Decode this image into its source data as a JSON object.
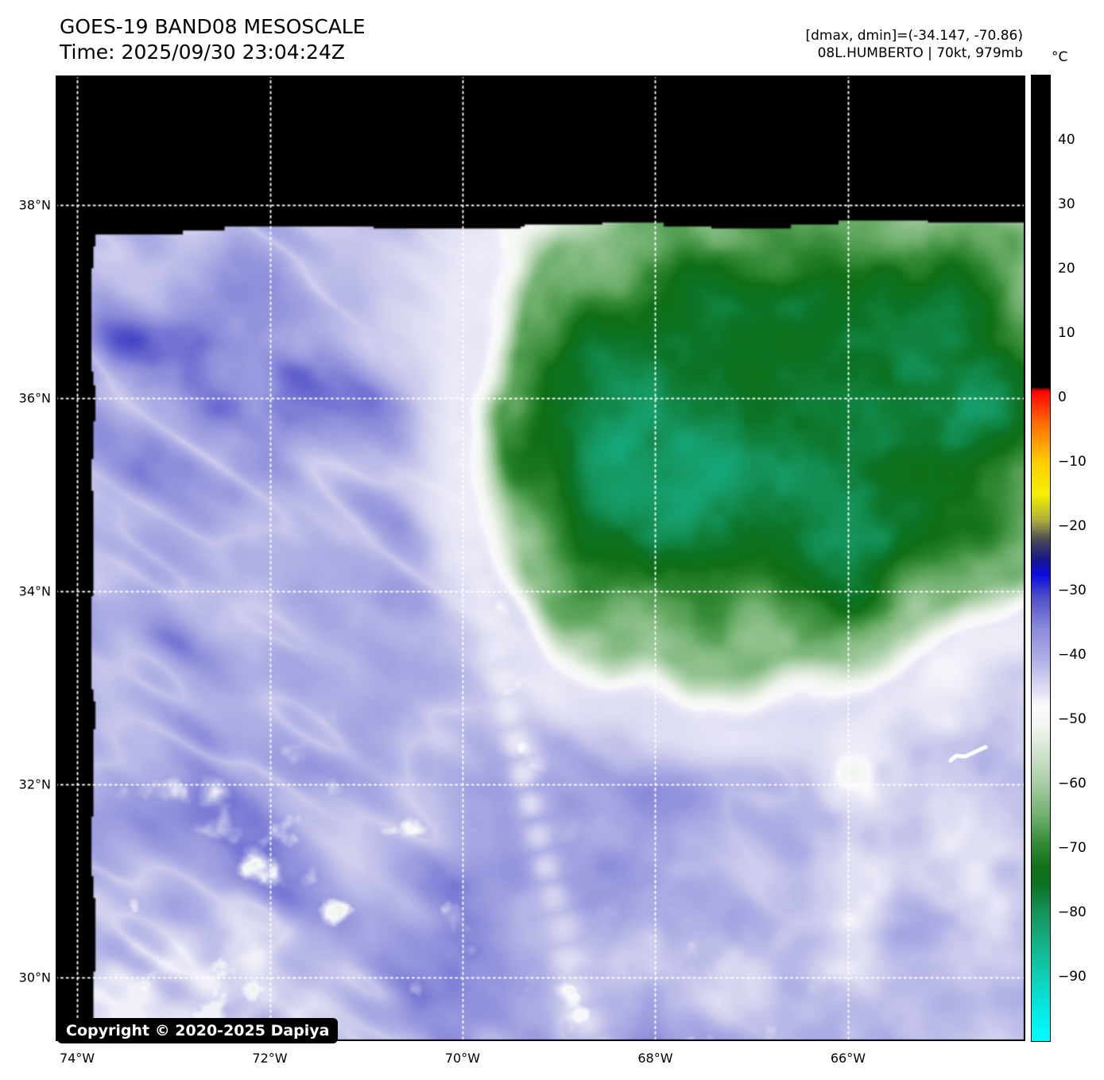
{
  "header": {
    "title": "GOES-19 BAND08 MESOSCALE",
    "time_line": "Time: 2025/09/30 23:04:24Z",
    "extrema_line": "[dmax, dmin]=(-34.147, -70.86)",
    "storm_line": "08L.HUMBERTO | 70kt, 979mb"
  },
  "map": {
    "copyright": "Copyright © 2020-2025 Dapiya",
    "lat_ticks": [
      {
        "lat": 38,
        "label": "38°N"
      },
      {
        "lat": 36,
        "label": "36°N"
      },
      {
        "lat": 34,
        "label": "34°N"
      },
      {
        "lat": 32,
        "label": "32°N"
      },
      {
        "lat": 30,
        "label": "30°N"
      }
    ],
    "lon_ticks": [
      {
        "lon": -74,
        "label": "74°W"
      },
      {
        "lon": -72,
        "label": "72°W"
      },
      {
        "lon": -70,
        "label": "70°W"
      },
      {
        "lon": -68,
        "label": "68°W"
      },
      {
        "lon": -66,
        "label": "66°W"
      }
    ]
  },
  "chart_data": {
    "type": "heatmap",
    "title": "GOES-19 BAND08 MESOSCALE",
    "subtitle": "Time: 2025/09/30 23:04:24Z",
    "annotations": {
      "dmax": -34.147,
      "dmin": -70.86,
      "storm_id": "08L",
      "storm_name": "HUMBERTO",
      "intensity_kt": 70,
      "pressure_mb": 979
    },
    "lon_range": [
      -74.223,
      -64.16
    ],
    "lat_range": [
      39.342,
      29.338
    ],
    "grid": "dotted-white",
    "colorbar": {
      "unit": "°C",
      "min": -100,
      "max": 50,
      "tick_labels": [
        {
          "v": 40,
          "label": "40"
        },
        {
          "v": 30,
          "label": "30"
        },
        {
          "v": 20,
          "label": "20"
        },
        {
          "v": 10,
          "label": "10"
        },
        {
          "v": 0,
          "label": "0"
        },
        {
          "v": -10,
          "label": "−10"
        },
        {
          "v": -20,
          "label": "−20"
        },
        {
          "v": -30,
          "label": "−30"
        },
        {
          "v": -40,
          "label": "−40"
        },
        {
          "v": -50,
          "label": "−50"
        },
        {
          "v": -60,
          "label": "−60"
        },
        {
          "v": -70,
          "label": "−70"
        },
        {
          "v": -80,
          "label": "−80"
        },
        {
          "v": -90,
          "label": "−90"
        }
      ],
      "palette_stops": [
        [
          50,
          "#000000"
        ],
        [
          1.6,
          "#000000"
        ],
        [
          1.1,
          "#ff0000"
        ],
        [
          -4,
          "#ff6e00"
        ],
        [
          -10,
          "#ffcd00"
        ],
        [
          -15,
          "#f6f000"
        ],
        [
          -19,
          "#afaf3c"
        ],
        [
          -22,
          "#4b4b55"
        ],
        [
          -25,
          "#191987"
        ],
        [
          -27.5,
          "#0a0ae1"
        ],
        [
          -31,
          "#5050c8"
        ],
        [
          -36,
          "#8c8cdb"
        ],
        [
          -41,
          "#b2b2e6"
        ],
        [
          -45,
          "#dbdbf2"
        ],
        [
          -48,
          "#fafafd"
        ],
        [
          -51,
          "#f2f6f0"
        ],
        [
          -55,
          "#d2e4cf"
        ],
        [
          -60,
          "#a7cda4"
        ],
        [
          -65,
          "#6eaf6c"
        ],
        [
          -69,
          "#378c38"
        ],
        [
          -73,
          "#0f6f16"
        ],
        [
          -76,
          "#0c7427"
        ],
        [
          -80,
          "#15945c"
        ],
        [
          -85,
          "#14b289"
        ],
        [
          -90,
          "#0ed0b8"
        ],
        [
          -95,
          "#04e8e2"
        ],
        [
          -100,
          "#00ffff"
        ]
      ]
    },
    "scene": {
      "no_data_color": "#000000",
      "moist_cold_region": "large green cloud shield of Hurricane Humberto covering NE half of sector",
      "dry_region": "blue/lavender dry slot over SW half with white cirrus filaments and trade cumulus",
      "bermuda_outline_visible": true
    }
  }
}
